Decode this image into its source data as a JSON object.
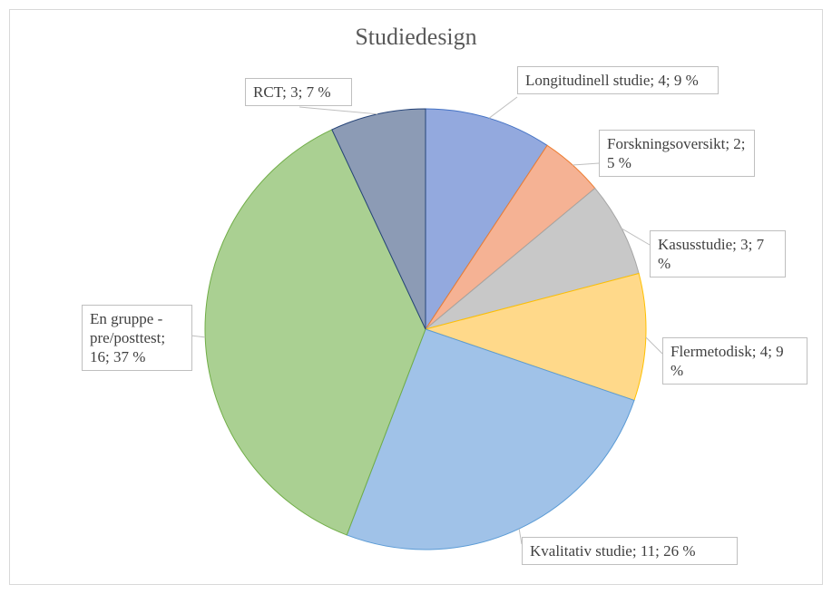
{
  "chart_data": {
    "type": "pie",
    "title": "Studiedesign",
    "categories": [
      "Longitudinell studie",
      "Forskningsoversikt",
      "Kasusstudie",
      "Flermetodisk",
      "Kvalitativ studie",
      "En gruppe - pre/posttest",
      "RCT"
    ],
    "values": [
      4,
      2,
      3,
      4,
      11,
      16,
      3
    ],
    "value_labels": [
      "Longitudinell studie; 4; 9 %",
      "Forskningsoversikt; 2; 5 %",
      "Kasusstudie; 3; 7 %",
      "Flermetodisk; 4; 9 %",
      "Kvalitativ studie; 11; 26 %",
      "En gruppe - pre/posttest; 16; 37 %",
      "RCT; 3; 7 %"
    ],
    "colors": [
      "#93a9de",
      "#f5b294",
      "#c8c8c8",
      "#ffd98a",
      "#a0c2e8",
      "#aad092",
      "#8c9bb5"
    ],
    "legend": false
  }
}
